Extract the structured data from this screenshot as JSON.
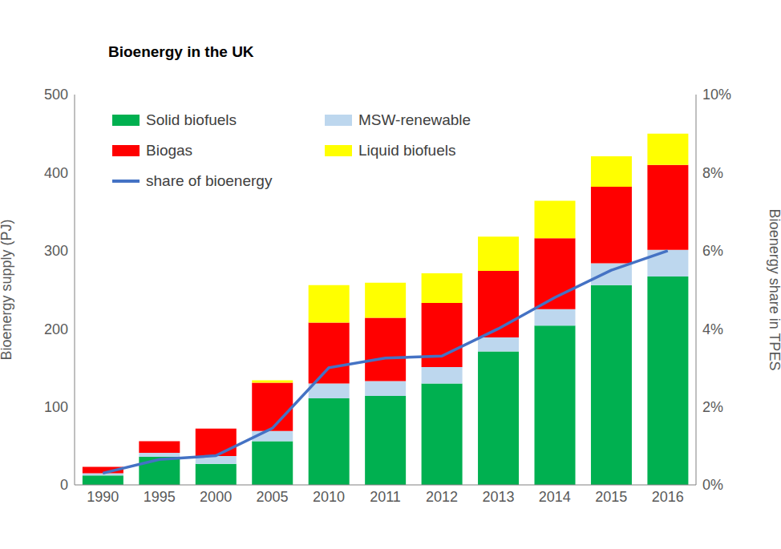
{
  "chart_data": {
    "type": "bar",
    "title": "Bioenergy in the UK",
    "stacked": true,
    "grid": false,
    "legend": "upper left",
    "categories": [
      "1990",
      "1995",
      "2000",
      "2005",
      "2010",
      "2011",
      "2012",
      "2013",
      "2014",
      "2015",
      "2016"
    ],
    "y_label": "Bioenergy supply (PJ)",
    "y2_label": "Bioenergy share in TPES",
    "ylim": [
      0,
      500
    ],
    "yticks": [
      0,
      100,
      200,
      300,
      400,
      500
    ],
    "y2lim": [
      0,
      10
    ],
    "y2ticks": [
      {
        "value": 0,
        "label": "0%"
      },
      {
        "value": 2,
        "label": "2%"
      },
      {
        "value": 4,
        "label": "4%"
      },
      {
        "value": 6,
        "label": "6%"
      },
      {
        "value": 8,
        "label": "8%"
      },
      {
        "value": 10,
        "label": "10%"
      }
    ],
    "series": [
      {
        "name": "Solid biofuels",
        "type": "bar",
        "color": "#00b050",
        "values": [
          12,
          36,
          27,
          56,
          111,
          114,
          130,
          171,
          204,
          256,
          267
        ]
      },
      {
        "name": "MSW-renewable",
        "type": "bar",
        "color": "#bdd7ee",
        "values": [
          3,
          5,
          10,
          13,
          19,
          19,
          21,
          18,
          21,
          28,
          34
        ]
      },
      {
        "name": "Biogas",
        "type": "bar",
        "color": "#ff0000",
        "values": [
          8,
          15,
          35,
          62,
          78,
          81,
          82,
          85,
          91,
          98,
          109
        ]
      },
      {
        "name": "Liquid biofuels",
        "type": "bar",
        "color": "#ffff00",
        "values": [
          0,
          0,
          0,
          3,
          48,
          45,
          38,
          44,
          48,
          39,
          40
        ]
      },
      {
        "name": "share of bioenergy",
        "type": "line",
        "axis": "y2",
        "color": "#4472c4",
        "values": [
          0.3,
          0.65,
          0.75,
          1.45,
          3.0,
          3.25,
          3.3,
          4.0,
          4.8,
          5.5,
          6.0
        ]
      }
    ]
  }
}
